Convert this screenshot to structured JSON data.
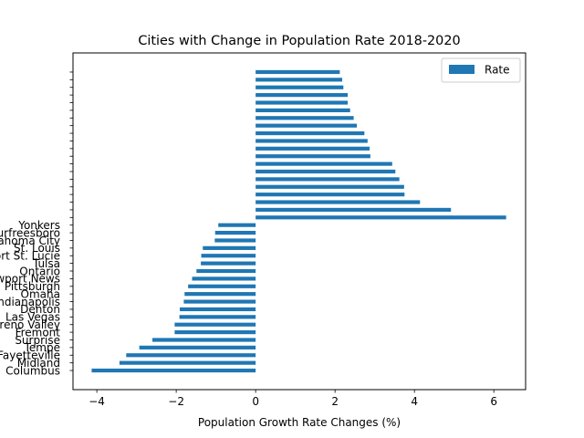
{
  "chart_data": {
    "type": "bar",
    "orientation": "horizontal",
    "title": "Cities with Change in Population Rate 2018-2020",
    "xlabel": "Population Growth Rate Changes (%)",
    "ylabel": "",
    "xlim": [
      -4.6,
      6.8
    ],
    "xticks": [
      -4,
      -2,
      0,
      2,
      4,
      6
    ],
    "xtick_labels": [
      "−4",
      "−2",
      "0",
      "2",
      "4",
      "6"
    ],
    "grid": false,
    "legend": {
      "position": "upper-right",
      "entries": [
        "Rate"
      ]
    },
    "bar_color": "#1f77b4",
    "categories": [
      "Columbus",
      "Midland",
      "Fayetteville",
      "Tempe",
      "Surprise",
      "Fremont",
      "Moreno Valley",
      "Las Vegas",
      "Denton",
      "Indianapolis",
      "Omaha",
      "Pittsburgh",
      "Newport News",
      "Ontario",
      "Tulsa",
      "Port St. Lucie",
      "St. Louis",
      "Oklahoma City",
      "Murfreesboro",
      "Yonkers",
      "",
      "",
      "",
      "",
      "",
      "",
      "",
      "",
      "",
      "",
      "",
      "",
      "",
      "",
      "",
      "",
      "",
      "",
      "",
      ""
    ],
    "series": [
      {
        "name": "Rate",
        "values": [
          -4.13,
          -3.43,
          -3.26,
          -2.93,
          -2.6,
          -2.04,
          -2.04,
          -1.92,
          -1.91,
          -1.81,
          -1.79,
          -1.7,
          -1.6,
          -1.49,
          -1.38,
          -1.37,
          -1.33,
          -1.03,
          -1.02,
          -0.94,
          6.31,
          4.92,
          4.14,
          3.75,
          3.74,
          3.62,
          3.52,
          3.44,
          2.89,
          2.87,
          2.82,
          2.74,
          2.55,
          2.47,
          2.38,
          2.32,
          2.32,
          2.21,
          2.18,
          2.12
        ]
      }
    ]
  }
}
